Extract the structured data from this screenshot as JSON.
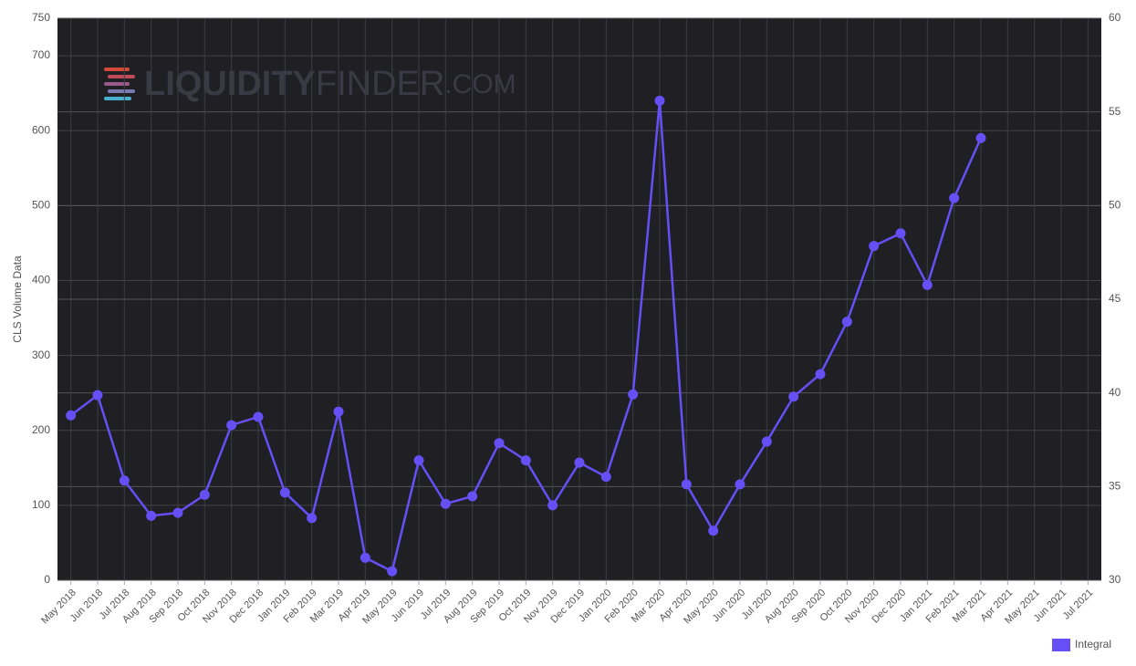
{
  "chart_data": {
    "type": "line",
    "watermark": {
      "brand": "LIQUIDITY",
      "suffix": "FINDER",
      "domain": ".COM"
    },
    "y_label": "CLS Volume Data",
    "categories": [
      "May 2018",
      "Jun 2018",
      "Jul 2018",
      "Aug 2018",
      "Sep 2018",
      "Oct 2018",
      "Nov 2018",
      "Dec 2018",
      "Jan 2019",
      "Feb 2019",
      "Mar 2019",
      "Apr 2019",
      "May 2019",
      "Jun 2019",
      "Jul 2019",
      "Aug 2019",
      "Sep 2019",
      "Oct 2019",
      "Nov 2019",
      "Dec 2019",
      "Jan 2020",
      "Feb 2020",
      "Mar 2020",
      "Apr 2020",
      "May 2020",
      "Jun 2020",
      "Jul 2020",
      "Aug 2020",
      "Sep 2020",
      "Oct 2020",
      "Nov 2020",
      "Dec 2020",
      "Jan 2021",
      "Feb 2021",
      "Mar 2021",
      "Apr 2021",
      "May 2021",
      "Jun 2021",
      "Jul 2021"
    ],
    "series": [
      {
        "name": "Integral",
        "color": "#6650f5",
        "values": [
          220,
          247,
          133,
          86,
          90,
          114,
          207,
          218,
          117,
          83,
          225,
          30,
          12,
          160,
          102,
          112,
          183,
          160,
          100,
          157,
          138,
          248,
          640,
          128,
          66,
          128,
          185,
          245,
          275,
          345,
          446,
          463,
          394,
          510,
          590,
          null,
          null,
          null,
          null
        ]
      }
    ],
    "ylim": [
      0,
      750
    ],
    "yticks": [
      0,
      100,
      200,
      300,
      400,
      500,
      600,
      700,
      750
    ],
    "y2lim": [
      30,
      60
    ],
    "y2ticks": [
      30,
      35,
      40,
      45,
      50,
      55,
      60
    ],
    "grid": true,
    "legend": "bottom-right",
    "background": "#1f1f24"
  }
}
